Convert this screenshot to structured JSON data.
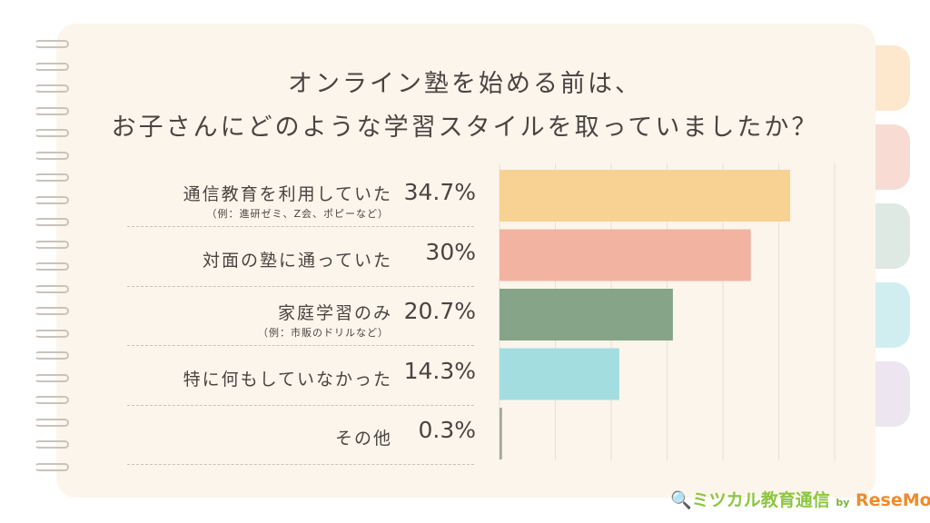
{
  "title_lines": [
    "オンライン塾を始める前は、",
    "お子さんにどのような学習スタイルを取っていましたか？"
  ],
  "chart_data": {
    "type": "bar",
    "orientation": "horizontal",
    "unit": "%",
    "categories": [
      "通信教育を利用していた",
      "対面の塾に通っていた",
      "家庭学習のみ",
      "特に何もしていなかった",
      "その他"
    ],
    "notes": [
      "（例：進研ゼミ、Z会、ポピーなど）",
      "",
      "（例：市販のドリルなど）",
      "",
      ""
    ],
    "values": [
      34.7,
      30,
      20.7,
      14.3,
      0.3
    ],
    "labels": [
      "34.7%",
      "30%",
      "20.7%",
      "14.3%",
      "0.3%"
    ],
    "xlim": [
      0,
      40
    ],
    "colors": [
      "#f8d292",
      "#f3b3a1",
      "#86a488",
      "#a3dde0",
      "#a5a89c"
    ],
    "grid": true
  },
  "logo": {
    "part1": "ミツカル",
    "part2": "教育通信",
    "by": "by",
    "brand": "ReseMom"
  },
  "tab_colors": [
    "#fde7cd",
    "#f8dcd3",
    "#dde9e2",
    "#d0eef0",
    "#ede5ef"
  ]
}
